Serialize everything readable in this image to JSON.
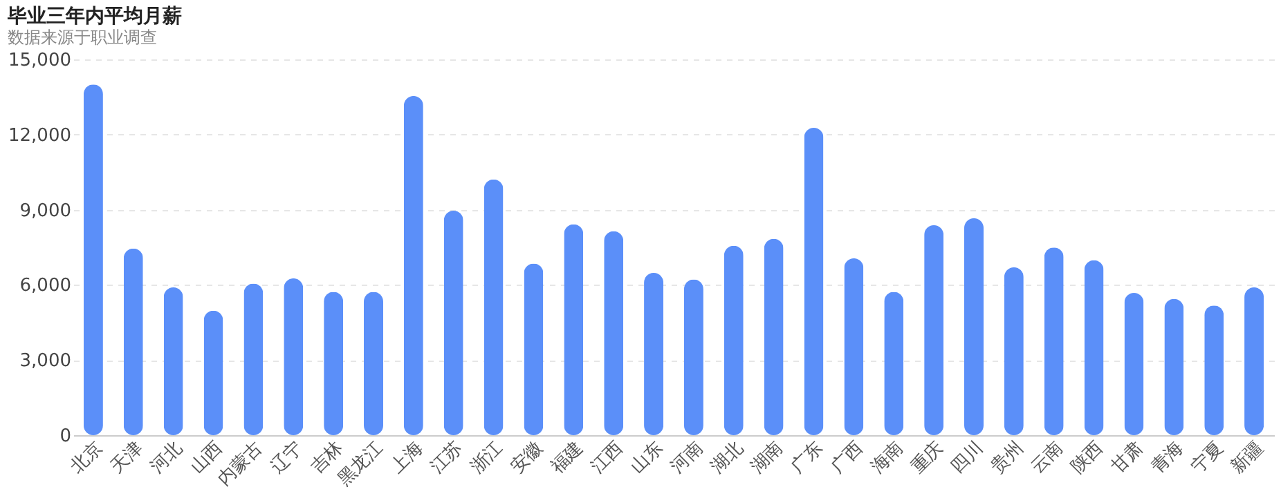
{
  "chart_data": {
    "type": "bar",
    "title": "毕业三年内平均月薪",
    "subtitle": "数据来源于职业调查",
    "categories": [
      "北京",
      "天津",
      "河北",
      "山西",
      "内蒙古",
      "辽宁",
      "吉林",
      "黑龙江",
      "上海",
      "江苏",
      "浙江",
      "安徽",
      "福建",
      "江西",
      "山东",
      "河南",
      "湖北",
      "湖南",
      "广东",
      "广西",
      "海南",
      "重庆",
      "四川",
      "贵州",
      "云南",
      "陕西",
      "甘肃",
      "青海",
      "宁夏",
      "新疆"
    ],
    "values": [
      14000,
      7450,
      5900,
      4970,
      6050,
      6260,
      5720,
      5720,
      13540,
      8960,
      10210,
      6850,
      8420,
      8140,
      6480,
      6220,
      7560,
      7840,
      12270,
      7060,
      5720,
      8380,
      8660,
      6700,
      7490,
      6980,
      5680,
      5440,
      5180,
      5900
    ],
    "color": "#5b8ff9",
    "ylim": [
      0,
      15000
    ],
    "yticks": [
      {
        "value": 0,
        "label": "0"
      },
      {
        "value": 3000,
        "label": "3,000"
      },
      {
        "value": 6000,
        "label": "6,000"
      },
      {
        "value": 9000,
        "label": "9,000"
      },
      {
        "value": 12000,
        "label": "12,000"
      },
      {
        "value": 15000,
        "label": "15,000"
      }
    ],
    "grid": "y"
  }
}
